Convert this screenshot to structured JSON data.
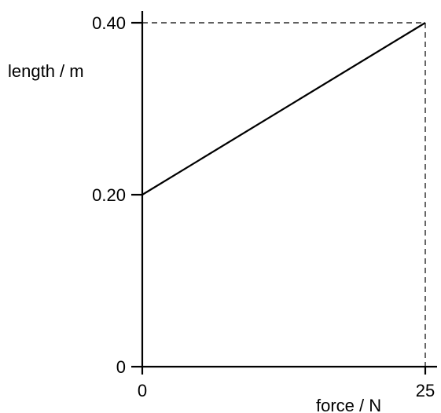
{
  "chart_data": {
    "type": "line",
    "title": "",
    "xlabel": "force / N",
    "ylabel": "length / m",
    "xlim": [
      0,
      25
    ],
    "ylim": [
      0,
      0.4
    ],
    "x_ticks": [
      {
        "value": 0,
        "label": "0"
      },
      {
        "value": 25,
        "label": "25"
      }
    ],
    "y_ticks": [
      {
        "value": 0,
        "label": "0"
      },
      {
        "value": 0.2,
        "label": "0.20"
      },
      {
        "value": 0.4,
        "label": "0.40"
      }
    ],
    "series": [
      {
        "x": [
          0,
          25
        ],
        "y": [
          0.2,
          0.4
        ]
      }
    ],
    "guide_lines": [
      {
        "from": [
          0,
          0.4
        ],
        "to": [
          25,
          0.4
        ],
        "style": "dashed"
      },
      {
        "from": [
          25,
          0.4
        ],
        "to": [
          25,
          0
        ],
        "style": "dashed"
      }
    ],
    "grid": false,
    "legend": "none",
    "colors": {
      "line": "#000000",
      "axes": "#000000"
    }
  }
}
